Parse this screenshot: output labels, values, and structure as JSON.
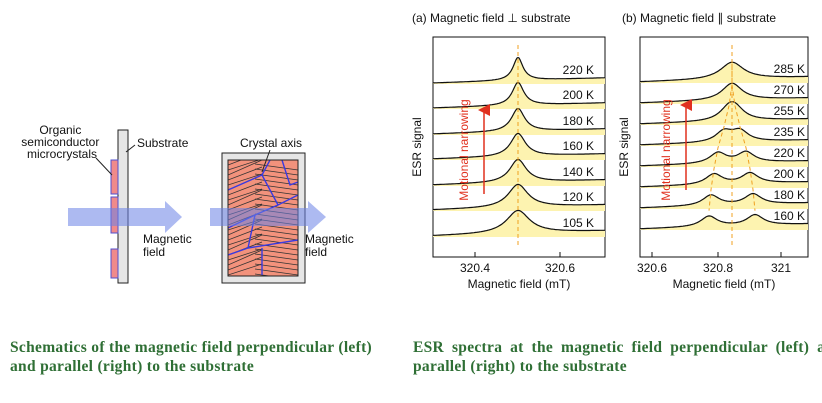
{
  "schematic": {
    "organic_label": [
      "Organic",
      "semiconductor",
      "microcrystals"
    ],
    "substrate_label": "Substrate",
    "crystal_axis_label": "Crystal axis",
    "field_label_left": [
      "Magnetic",
      "field"
    ],
    "field_label_right": [
      "Magnetic",
      "field"
    ]
  },
  "panels": [
    {
      "title": "(a) Magnetic field ⊥ substrate",
      "ylabel": "ESR signal",
      "annotation": "Motional narrowing",
      "temperatures": [
        "220 K",
        "200 K",
        "180 K",
        "160 K",
        "140 K",
        "120 K",
        "105 K"
      ],
      "xticks": [
        "320.4",
        "320.6"
      ],
      "xlabel": "Magnetic field (mT)"
    },
    {
      "title": "(b) Magnetic field ∥ substrate",
      "ylabel": "ESR signal",
      "annotation": "Motional narrowing",
      "temperatures": [
        "285 K",
        "270 K",
        "255 K",
        "235 K",
        "220 K",
        "200 K",
        "180 K",
        "160 K"
      ],
      "xticks": [
        "320.6",
        "320.8",
        "321"
      ],
      "xlabel": "Magnetic field (mT)"
    }
  ],
  "captions": [
    "Schematics of the magnetic field perpendicular (left) and parallel (right) to the substrate",
    "ESR spectra at the magnetic field perpendicular (left) and parallel (right) to the substrate"
  ]
}
